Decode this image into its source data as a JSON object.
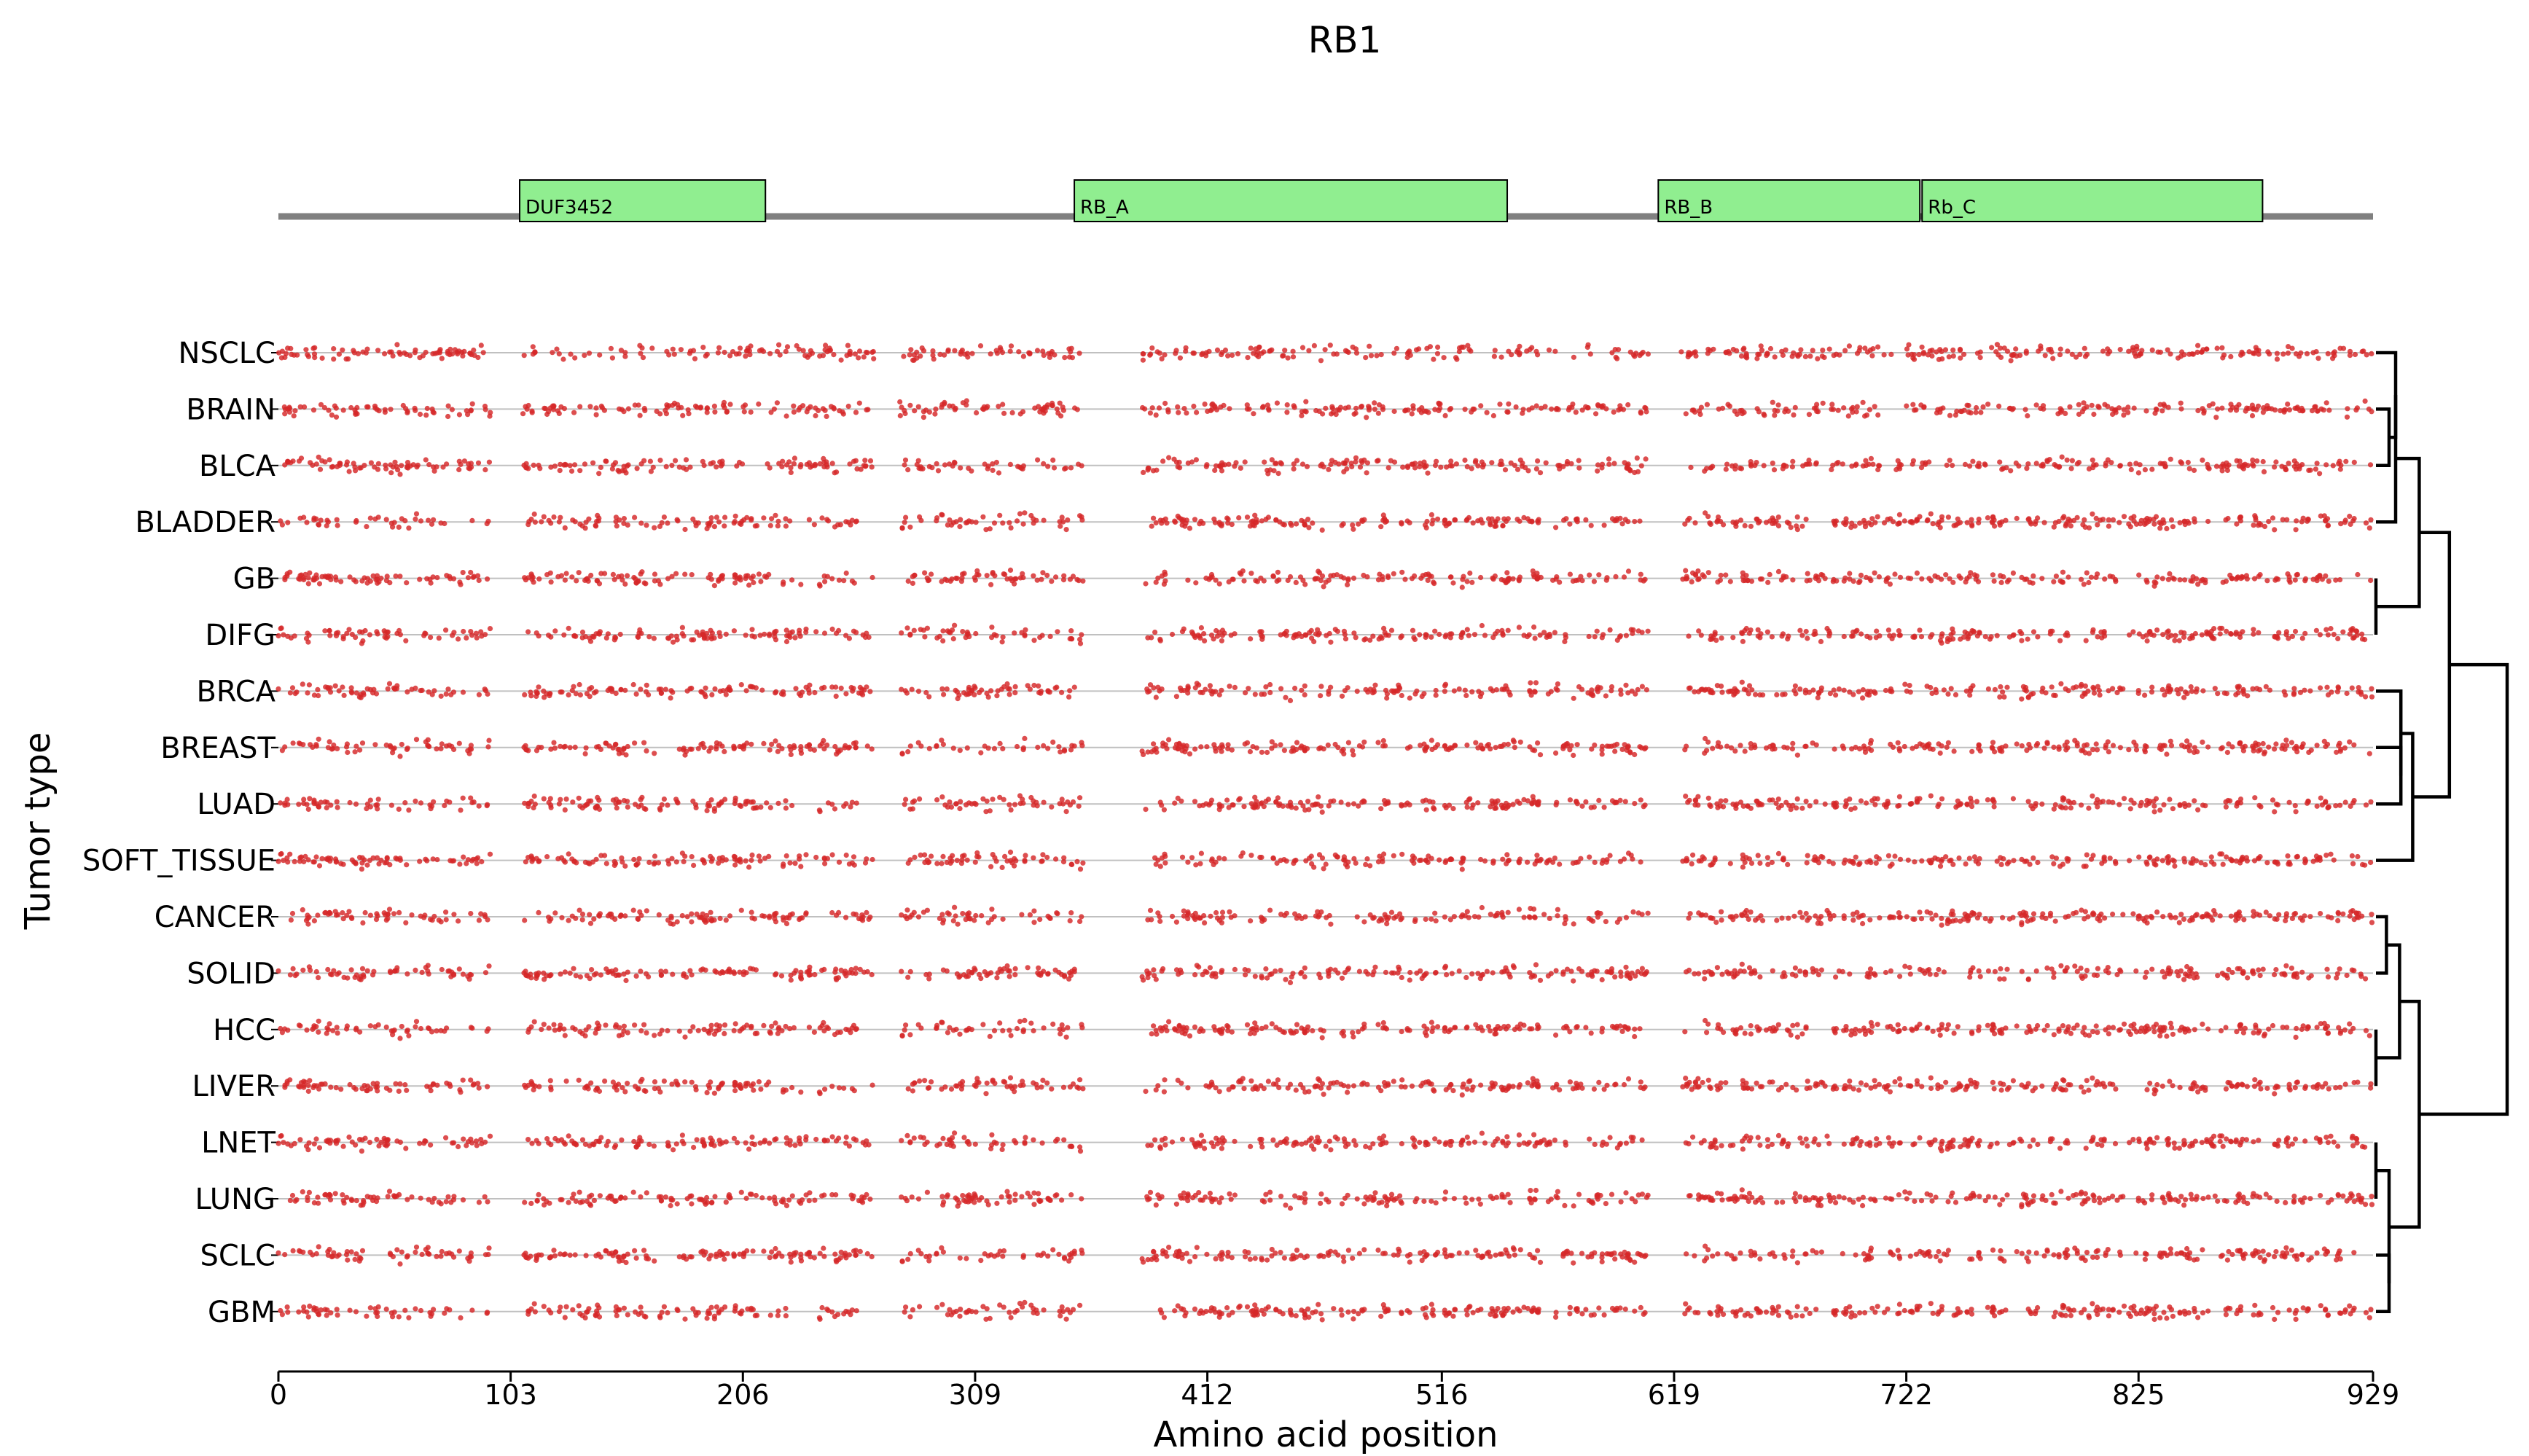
{
  "chart_data": {
    "type": "scatter",
    "title": "RB1",
    "xlabel": "Amino acid position",
    "ylabel": "Tumor type",
    "xlim": [
      0,
      929
    ],
    "xticks": [
      0,
      103,
      206,
      309,
      412,
      516,
      619,
      722,
      825,
      929
    ],
    "xtick_labels": [
      "0",
      "103",
      "206",
      "309",
      "412",
      "516",
      "619",
      "722",
      "825",
      "929"
    ],
    "grid": false,
    "categories": [
      "NSCLC",
      "BRAIN",
      "BLCA",
      "BLADDER",
      "GB",
      "DIFG",
      "BRCA",
      "BREAST",
      "LUAD",
      "SOFT_TISSUE",
      "CANCER",
      "SOLID",
      "HCC",
      "LIVER",
      "LNET",
      "LUNG",
      "SCLC",
      "GBM"
    ],
    "point_color": "#d62728",
    "points_per_track_approx": 560,
    "gap_intervals_no_mutations": [
      [
        94,
        108
      ],
      [
        264,
        275
      ],
      [
        357,
        383
      ],
      [
        608,
        622
      ]
    ],
    "domains": [
      {
        "name": "DUF3452",
        "start": 107,
        "end": 216
      },
      {
        "name": "RB_A",
        "start": 353,
        "end": 545
      },
      {
        "name": "RB_B",
        "start": 612,
        "end": 728
      },
      {
        "name": "Rb_C",
        "start": 729,
        "end": 880
      }
    ],
    "domain_color": "#90ee90",
    "backbone_color": "#808080",
    "dendrogram": {
      "leaf_order": [
        "NSCLC",
        "BRAIN",
        "BLCA",
        "BLADDER",
        "GB",
        "DIFG",
        "BRCA",
        "BREAST",
        "LUAD",
        "SOFT_TISSUE",
        "CANCER",
        "SOLID",
        "HCC",
        "LIVER",
        "LNET",
        "LUNG",
        "SCLC",
        "GBM"
      ],
      "merges": [
        {
          "a": "BRAIN",
          "b": "BLCA",
          "height": 0.1
        },
        {
          "a": "NSCLC",
          "b": "BRAIN+BLCA",
          "height": 0.15
        },
        {
          "a": "BLADDER",
          "b": "NSCLC+BRAIN+BLCA",
          "height": 0.33
        },
        {
          "a": "GB",
          "b": "DIFG",
          "height": 0.0
        },
        {
          "a": "GB+DIFG",
          "b": "BLADDER+NSCLC+BRAIN+BLCA",
          "height": 0.33
        },
        {
          "a": "BREAST",
          "b": "LUAD",
          "height": 0.19
        },
        {
          "a": "BRCA",
          "b": "BREAST+LUAD",
          "height": 0.28
        },
        {
          "a": "BRCA+BREAST+LUAD",
          "b": "SOFT_TISSUE",
          "height": 0.28
        },
        {
          "a": "upper_group_1",
          "b": "upper_group_2",
          "height": 0.56
        },
        {
          "a": "CANCER",
          "b": "SOLID",
          "height": 0.08
        },
        {
          "a": "CANCER+SOLID",
          "b": "HCC+LIVER",
          "height": 0.18
        },
        {
          "a": "SCLC",
          "b": "GBM",
          "height": 0.1
        },
        {
          "a": "LNET+LUNG",
          "b": "SCLC+GBM",
          "height": 0.1
        },
        {
          "a": "lower_group_1",
          "b": "lower_group_2",
          "height": 0.33
        },
        {
          "a": "upper",
          "b": "lower",
          "height": 1.0
        }
      ]
    }
  }
}
